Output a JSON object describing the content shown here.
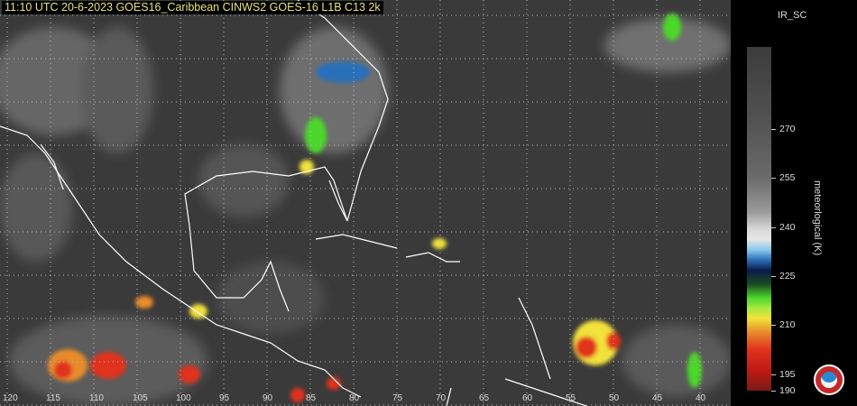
{
  "header": {
    "title": "11:10 UTC 20-6-2023 GOES16_Caribbean  CINWS2 GOES-16 L1B C13 2k"
  },
  "map": {
    "longitude_labels": [
      "120",
      "115",
      "110",
      "105",
      "100",
      "95",
      "90",
      "85",
      "80",
      "75",
      "70",
      "65",
      "60",
      "55",
      "50",
      "45",
      "40"
    ]
  },
  "colorbar": {
    "title": "IR_SC",
    "unit_label": "meteorlogical (K)",
    "ticks": [
      "270",
      "255",
      "240",
      "225",
      "210",
      "195",
      "190"
    ],
    "range_k": [
      190,
      295
    ],
    "colors": [
      "#3c3c3c",
      "#9a9a9a",
      "#e6e6e6",
      "#8cc8ee",
      "#0a1a48",
      "#4cd62c",
      "#f2e23a",
      "#e0321e",
      "#7a1a14"
    ]
  },
  "logo": {
    "icon": "agency-seal-icon"
  }
}
